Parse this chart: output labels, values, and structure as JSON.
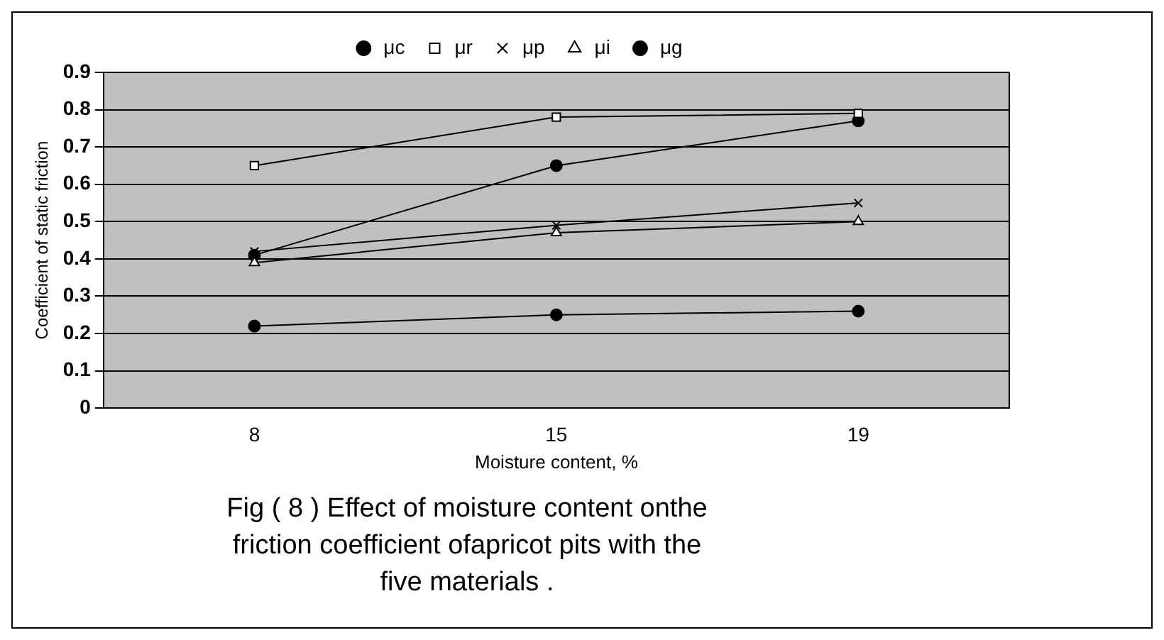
{
  "chart_data": {
    "type": "line",
    "categories": [
      "8",
      "15",
      "19"
    ],
    "xlabel": "Moisture content, %",
    "ylabel": "Coefficient of static friction",
    "ylim": [
      0,
      0.9
    ],
    "yticks": [
      0,
      0.1,
      0.2,
      0.3,
      0.4,
      0.5,
      0.6,
      0.7,
      0.8,
      0.9
    ],
    "grid": "y",
    "legend": "top",
    "line_style": "solid",
    "series": [
      {
        "name": "μc",
        "color": "#000000",
        "marker": "circle",
        "values": [
          0.22,
          0.25,
          0.26
        ]
      },
      {
        "name": "μr",
        "color": "#000000",
        "marker": "square",
        "values": [
          0.65,
          0.78,
          0.79
        ]
      },
      {
        "name": "μp",
        "color": "#000000",
        "marker": "cross",
        "values": [
          0.42,
          0.49,
          0.55
        ]
      },
      {
        "name": "μi",
        "color": "#000000",
        "marker": "triangle",
        "values": [
          0.39,
          0.47,
          0.5
        ]
      },
      {
        "name": "μg",
        "color": "#000000",
        "marker": "circle",
        "values": [
          0.41,
          0.65,
          0.77
        ]
      }
    ],
    "annotations": [
      "Fig ( 8 ) Effect of moisture content onthe",
      "friction coefficient ofapricot pits with the",
      "five materials ."
    ]
  }
}
